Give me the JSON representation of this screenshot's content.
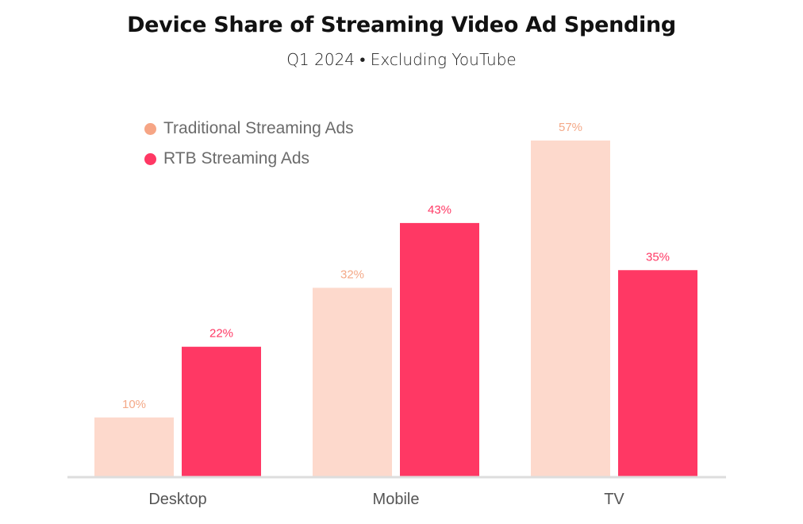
{
  "chart_data": {
    "type": "bar",
    "title": "Device Share of Streaming Video Ad Spending",
    "subtitle": "Q1 2024 • Excluding YouTube",
    "xlabel": "",
    "ylabel": "",
    "ylim": [
      0,
      57
    ],
    "grid": false,
    "legend_position": "top-left",
    "categories": [
      "Desktop",
      "Mobile",
      "TV"
    ],
    "series": [
      {
        "name": "Traditional Streaming Ads",
        "color": "#fdd9cc",
        "label_color": "#f4a988",
        "dot_color": "#f6a585",
        "values": [
          10,
          32,
          57
        ],
        "labels": [
          "10%",
          "32%",
          "57%"
        ]
      },
      {
        "name": "RTB Streaming Ads",
        "color": "#ff3864",
        "label_color": "#ff3864",
        "dot_color": "#ff3864",
        "values": [
          22,
          43,
          35
        ],
        "labels": [
          "22%",
          "43%",
          "35%"
        ]
      }
    ],
    "axis_color": "#dddddd",
    "tick_label_color": "#555555"
  }
}
